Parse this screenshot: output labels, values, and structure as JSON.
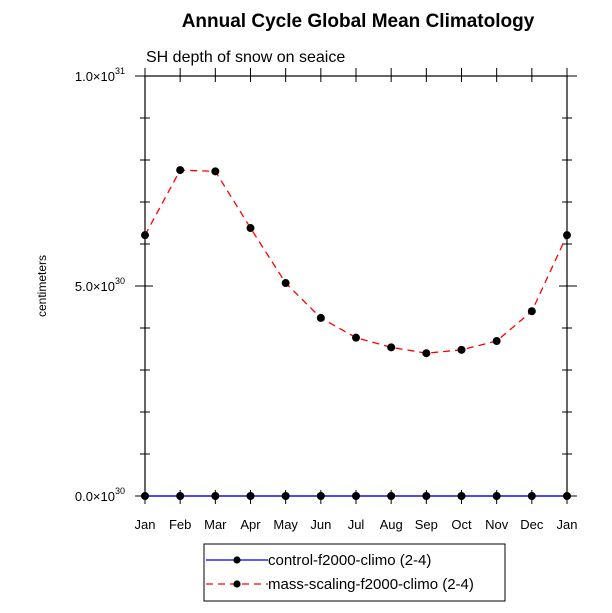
{
  "chart_data": {
    "type": "line",
    "title": "Annual Cycle Global Mean Climatology",
    "subtitle": "SH depth of snow on seaice",
    "xlabel": "",
    "ylabel": "centimeters",
    "categories": [
      "Jan",
      "Feb",
      "Mar",
      "Apr",
      "May",
      "Jun",
      "Jul",
      "Aug",
      "Sep",
      "Oct",
      "Nov",
      "Dec",
      "Jan"
    ],
    "ylim": [
      0,
      1e+31
    ],
    "yticks": [
      {
        "value": 0,
        "mantissa": "0.0",
        "base": "10",
        "exp": "30"
      },
      {
        "value": 5e+30,
        "mantissa": "5.0",
        "base": "10",
        "exp": "30"
      },
      {
        "value": 1e+31,
        "mantissa": "1.0",
        "base": "10",
        "exp": "31"
      }
    ],
    "yminor_step": 1e+30,
    "grid": false,
    "legend_position": "bottom-center",
    "series": [
      {
        "name": "control-f2000-climo (2-4)",
        "color": "#0000ff",
        "line_style": "solid",
        "marker": "filled-circle",
        "values": [
          0,
          0,
          0,
          0,
          0,
          0,
          0,
          0,
          0,
          0,
          0,
          0,
          0
        ]
      },
      {
        "name": "mass-scaling-f2000-climo (2-4)",
        "color": "#ff0000",
        "line_style": "dashed",
        "marker": "filled-circle",
        "values": [
          6.21e+30,
          7.76e+30,
          7.73e+30,
          6.38e+30,
          5.07e+30,
          4.24e+30,
          3.77e+30,
          3.54e+30,
          3.4e+30,
          3.48e+30,
          3.69e+30,
          4.4e+30,
          6.21e+30
        ]
      }
    ]
  }
}
